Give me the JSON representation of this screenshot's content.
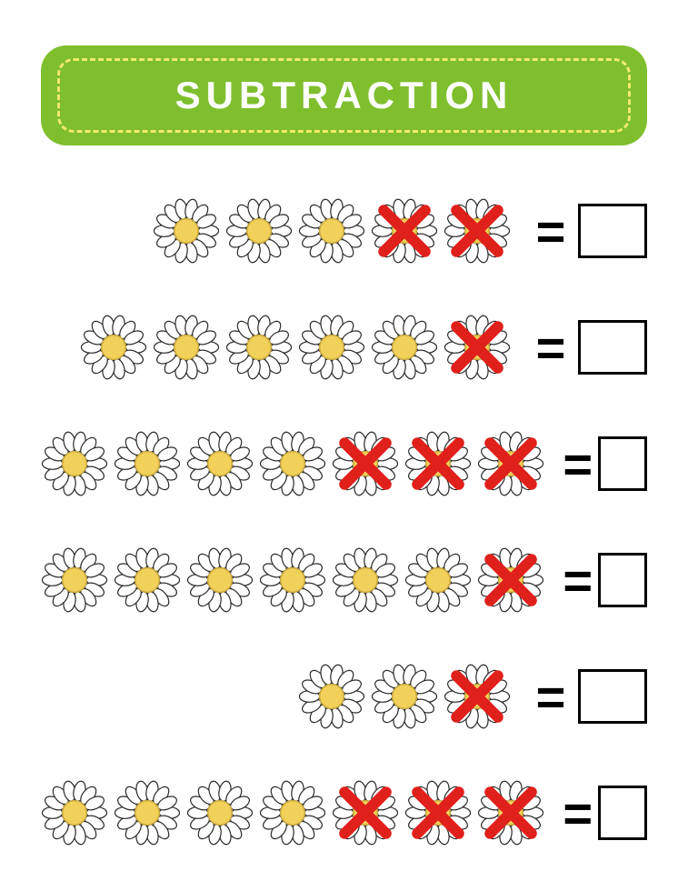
{
  "title": "SUBTRACTION",
  "banner": {
    "bg_color": "#7fbf2e",
    "dash_color": "#f5e96a",
    "border_radius": 28,
    "title_color": "#ffffff",
    "title_fontsize": 42,
    "title_letterspacing": 6
  },
  "flower": {
    "petal_fill": "#ffffff",
    "petal_stroke": "#2b2b2b",
    "center_fill": "#f2d15a",
    "center_stroke": "#c9a93f",
    "size": 74
  },
  "cross": {
    "color": "#e0201b",
    "stroke_width": 12,
    "size": 60
  },
  "equals_color": "#000000",
  "answer_box": {
    "border_color": "#000000",
    "border_width": 3,
    "width": 76,
    "height": 60
  },
  "rows": [
    {
      "total": 5,
      "crossed": 2
    },
    {
      "total": 6,
      "crossed": 1
    },
    {
      "total": 7,
      "crossed": 3
    },
    {
      "total": 7,
      "crossed": 1
    },
    {
      "total": 3,
      "crossed": 1
    },
    {
      "total": 7,
      "crossed": 3
    }
  ]
}
